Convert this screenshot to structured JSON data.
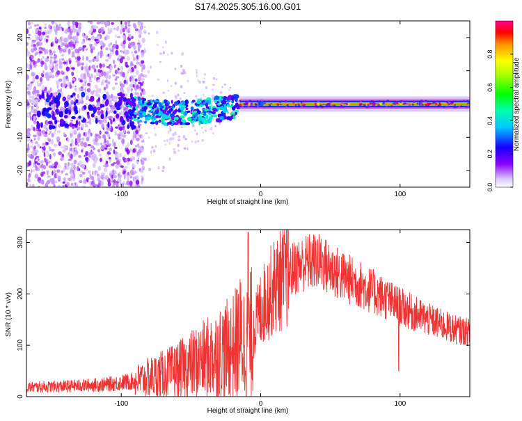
{
  "chart_data": [
    {
      "type": "heatmap",
      "title": "S174.2025.305.16.00.G01",
      "xlabel": "Height of straight line (km)",
      "ylabel": "Frequency (Hz)",
      "xlim": [
        -168,
        150
      ],
      "ylim": [
        -25,
        25
      ],
      "xticks": [
        -100,
        0,
        100
      ],
      "yticks": [
        -20,
        -10,
        0,
        10,
        20
      ],
      "colorbar": {
        "label": "Normalized spectral amplitude",
        "range": [
          0.0,
          1.0
        ],
        "ticks": [
          0.0,
          0.2,
          0.4,
          0.6,
          0.8
        ],
        "tick_labels": [
          "0.0",
          "0.2",
          "0.4",
          "0.6",
          "0.8"
        ]
      },
      "features": {
        "noise_region": [
          -168,
          -95
        ],
        "transition_region": [
          -95,
          -15
        ],
        "carrier_line": {
          "x_range": [
            -15,
            150
          ],
          "frequency_hz": 0,
          "amplitude": 1.0
        },
        "dip_near_km": 0
      }
    },
    {
      "type": "line",
      "xlabel": "Height of straight line (km)",
      "ylabel": "SNR (10 * v/v)",
      "xlim": [
        -168,
        150
      ],
      "ylim": [
        0,
        325
      ],
      "xticks": [
        -100,
        0,
        100
      ],
      "yticks": [
        0,
        100,
        200,
        300
      ],
      "color": "#ee3333",
      "profile_km": [
        -168,
        -140,
        -110,
        -90,
        -75,
        -60,
        -50,
        -40,
        -30,
        -20,
        -15,
        -10,
        -5,
        0,
        5,
        10,
        15,
        20,
        25,
        30,
        35,
        40,
        45,
        50,
        60,
        70,
        80,
        90,
        100,
        110,
        120,
        130,
        140,
        150
      ],
      "profile_snr": [
        18,
        20,
        24,
        30,
        40,
        50,
        62,
        72,
        85,
        95,
        115,
        105,
        130,
        170,
        195,
        215,
        228,
        240,
        252,
        258,
        262,
        263,
        258,
        248,
        232,
        220,
        205,
        190,
        175,
        162,
        150,
        140,
        130,
        125
      ],
      "peak": {
        "km": -9,
        "snr": 320
      },
      "dip": {
        "km": 99,
        "snr": 50
      }
    }
  ]
}
